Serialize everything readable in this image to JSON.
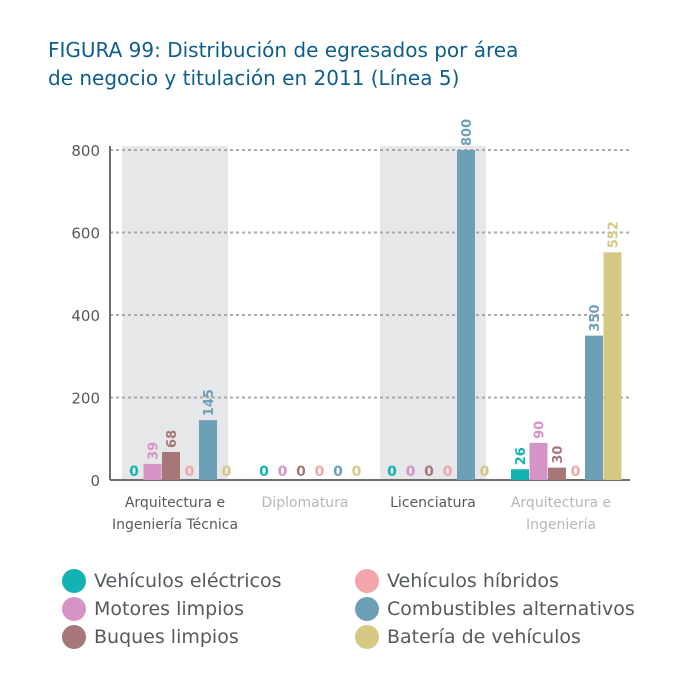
{
  "title": {
    "line1": "FIGURA 99: Distribución de egresados por área",
    "line2": "de negocio y titulación en 2011 (Línea 5)"
  },
  "chart_data": {
    "type": "bar",
    "categories": [
      "Arquitectura e\nIngeniería Técnica",
      "Diplomatura",
      "Licenciatura",
      "Arquitectura e\nIngeniería"
    ],
    "category_label_colors": [
      "#555a5e",
      "#b5b8ba",
      "#555a5e",
      "#b5b8ba"
    ],
    "shaded_categories": [
      0,
      2
    ],
    "series": [
      {
        "name": "Vehículos eléctricos",
        "color": "#14b3b3",
        "values": [
          0,
          0,
          0,
          26
        ]
      },
      {
        "name": "Motores limpios",
        "color": "#d593c8",
        "values": [
          39,
          0,
          0,
          90
        ]
      },
      {
        "name": "Buques limpios",
        "color": "#a77777",
        "values": [
          68,
          0,
          0,
          30
        ]
      },
      {
        "name": "Vehículos híbridos",
        "color": "#f2a5aa",
        "values": [
          0,
          0,
          0,
          0
        ]
      },
      {
        "name": "Combustibles alternativos",
        "color": "#6d9fb6",
        "values": [
          145,
          0,
          800,
          350
        ]
      },
      {
        "name": "Batería de vehículos",
        "color": "#d4c882",
        "values": [
          0,
          0,
          0,
          552
        ]
      }
    ],
    "yticks": [
      0,
      200,
      400,
      600,
      800
    ],
    "ylim": [
      0,
      800
    ],
    "xlabel": "",
    "ylabel": "",
    "grid": true,
    "legend_position": "bottom"
  }
}
